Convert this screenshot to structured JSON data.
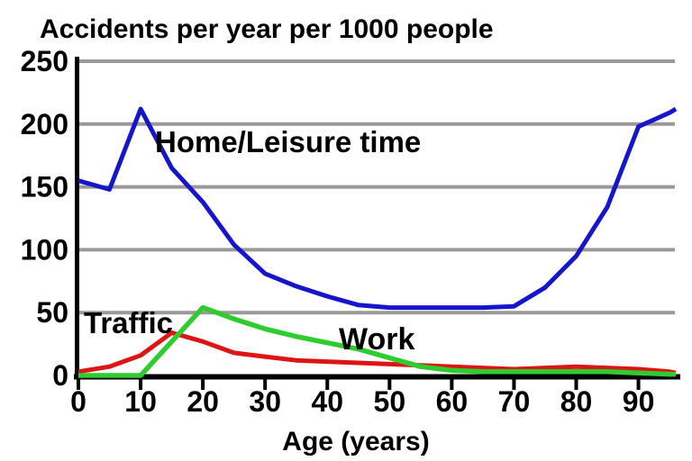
{
  "chart_data": {
    "type": "line",
    "title": "Accidents per year per 1000 people",
    "xlabel": "Age (years)",
    "ylabel": "",
    "x": [
      0,
      5,
      10,
      15,
      20,
      25,
      30,
      35,
      40,
      45,
      50,
      55,
      60,
      65,
      70,
      75,
      80,
      85,
      90,
      95,
      96
    ],
    "series": [
      {
        "name": "Home/Leisure time",
        "color": "#1515cc",
        "label_color": "#1a1ab2",
        "line_width": 5,
        "values": [
          155,
          148,
          212,
          165,
          138,
          104,
          81,
          71,
          63,
          56,
          54,
          54,
          54,
          54,
          55,
          70,
          95,
          134,
          198,
          209,
          212
        ]
      },
      {
        "name": "Traffic",
        "color": "#dd1515",
        "label_color": "#8e1313",
        "line_width": 5,
        "values": [
          3,
          7,
          16,
          34,
          27,
          18,
          15,
          12,
          11,
          10,
          9,
          8,
          7,
          6,
          5,
          6,
          7,
          6,
          5,
          3,
          2
        ]
      },
      {
        "name": "Work",
        "color": "#2fcc2f",
        "label_color": "#1f8c1f",
        "line_width": 5.5,
        "values": [
          0,
          0,
          0,
          27,
          54,
          45,
          37,
          31,
          26,
          21,
          14,
          7,
          4,
          3,
          3,
          3,
          3,
          3,
          2,
          1,
          1
        ]
      }
    ],
    "xticks": [
      0,
      10,
      20,
      30,
      40,
      50,
      60,
      70,
      80,
      90
    ],
    "yticks": [
      0,
      50,
      100,
      150,
      200,
      250
    ],
    "xlim": [
      0,
      96
    ],
    "ylim": [
      0,
      250
    ],
    "grid": "horizontal",
    "gridline_color": "#999999",
    "axis_color": "#000000",
    "background": "#ffffff",
    "legend": "inline-labels"
  }
}
